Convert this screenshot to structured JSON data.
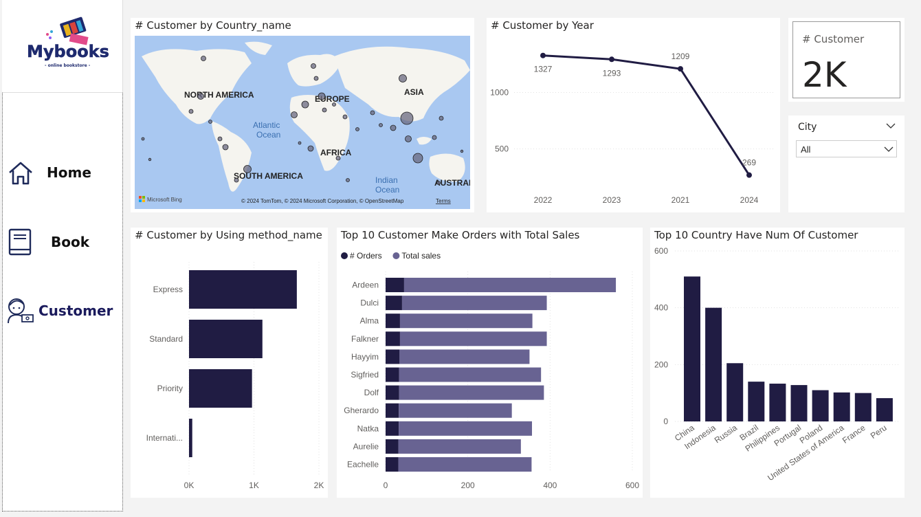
{
  "sidebar": {
    "logo": {
      "brand": "Mybooks",
      "tagline": "- online bookstore -"
    },
    "nav": [
      {
        "label": "Home",
        "icon": "home-icon"
      },
      {
        "label": "Book",
        "icon": "book-icon"
      },
      {
        "label": "Customer",
        "icon": "customer-icon",
        "active": true
      }
    ]
  },
  "map_panel": {
    "title": "# Customer by Country_name",
    "labels": [
      "NORTH AMERICA",
      "EUROPE",
      "ASIA",
      "AFRICA",
      "SOUTH AMERICA",
      "AUSTRAL"
    ],
    "ocean_labels": [
      "Atlantic Ocean",
      "Indian Ocean"
    ],
    "ocean_atlantic_lines": [
      "Atlantic",
      "Ocean"
    ],
    "ocean_indian_lines": [
      "Indian",
      "Ocean"
    ],
    "attribution": "© 2024 TomTom, © 2024 Microsoft Corporation, © OpenStreetMap",
    "terms_link": "Terms",
    "bing_logo": "Microsoft Bing"
  },
  "year_panel": {
    "title": "# Customer by Year",
    "chart_data": {
      "type": "line",
      "categories": [
        "2022",
        "2023",
        "2021",
        "2024"
      ],
      "values": [
        1327,
        1293,
        1209,
        269
      ],
      "value_labels": [
        "1327",
        "1293",
        "1209",
        "269"
      ],
      "yticks": [
        500,
        1000
      ],
      "ytick_labels": [
        "500",
        "1000"
      ],
      "ylim": [
        200,
        1380
      ],
      "color": "#201c43"
    }
  },
  "kpi": {
    "label": "# Customer",
    "value": "2K"
  },
  "slicer": {
    "title": "City",
    "selected": "All"
  },
  "method_panel": {
    "title": "# Customer by Using method_name",
    "chart_data": {
      "type": "bar",
      "orientation": "horizontal",
      "categories": [
        "Express",
        "Standard",
        "Priority",
        "Internati..."
      ],
      "values": [
        1660,
        1130,
        970,
        50
      ],
      "xticks": [
        0,
        1000,
        2000
      ],
      "xtick_labels": [
        "0K",
        "1K",
        "2K"
      ],
      "xlim": [
        0,
        2000
      ],
      "color": "#201c43"
    }
  },
  "top_customers_panel": {
    "title": "Top 10 Customer Make Orders with Total Sales",
    "legend": [
      {
        "name": "# Orders",
        "color": "#201c43"
      },
      {
        "name": "Total sales",
        "color": "#686392"
      }
    ],
    "chart_data": {
      "type": "bar",
      "orientation": "horizontal",
      "stacked": true,
      "categories": [
        "Ardeen",
        "Dulci",
        "Alma",
        "Falkner",
        "Hayyim",
        "Sigfried",
        "Dolf",
        "Gherardo",
        "Natka",
        "Aurelie",
        "Eachelle"
      ],
      "series": [
        {
          "name": "# Orders",
          "values": [
            45,
            40,
            35,
            35,
            34,
            33,
            33,
            32,
            32,
            31,
            31
          ]
        },
        {
          "name": "Total sales",
          "values": [
            515,
            352,
            322,
            357,
            316,
            345,
            352,
            275,
            324,
            298,
            324
          ]
        }
      ],
      "xticks": [
        0,
        200,
        400,
        600
      ],
      "xtick_labels": [
        "0",
        "200",
        "400",
        "600"
      ],
      "xlim": [
        0,
        600
      ]
    }
  },
  "top_countries_panel": {
    "title": "Top 10 Country Have Num Of Customer",
    "chart_data": {
      "type": "bar",
      "categories": [
        "China",
        "Indonesia",
        "Russia",
        "Brazil",
        "Philippines",
        "Portugal",
        "Poland",
        "United States of America",
        "France",
        "Peru"
      ],
      "values": [
        510,
        400,
        205,
        140,
        133,
        128,
        110,
        102,
        100,
        82
      ],
      "yticks": [
        0,
        200,
        400,
        600
      ],
      "ytick_labels": [
        "0",
        "200",
        "400",
        "600"
      ],
      "ylim": [
        0,
        600
      ],
      "color": "#201c43"
    }
  }
}
